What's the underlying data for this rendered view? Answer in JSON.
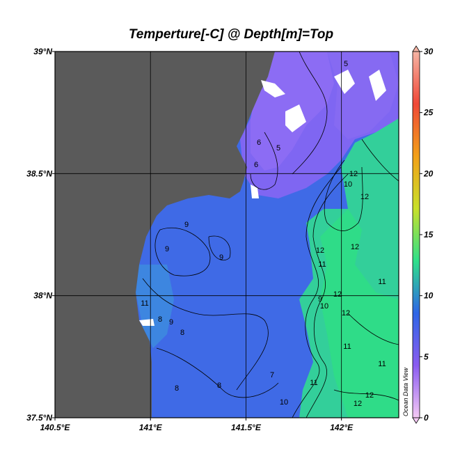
{
  "chart_data": {
    "type": "map",
    "title": "Temperture[-C] @ Depth[m]=Top",
    "xlim": [
      140.5,
      142.3
    ],
    "ylim": [
      37.5,
      39
    ],
    "xticks": [
      {
        "value": 140.5,
        "label": "140.5°E"
      },
      {
        "value": 141,
        "label": "141°E"
      },
      {
        "value": 141.5,
        "label": "141.5°E"
      },
      {
        "value": 142,
        "label": "142°E"
      }
    ],
    "yticks": [
      {
        "value": 37.5,
        "label": "37.5°N"
      },
      {
        "value": 38,
        "label": "38°N"
      },
      {
        "value": 38.5,
        "label": "38.5°N"
      },
      {
        "value": 39,
        "label": "39°N"
      }
    ],
    "grid": true,
    "colorbar": {
      "lim": [
        0,
        30
      ],
      "ticks": [
        0,
        5,
        10,
        15,
        20,
        25,
        30
      ],
      "colors": [
        "#f4c8f4",
        "#8a5cf0",
        "#2f66e6",
        "#2fe08a",
        "#c8e02a",
        "#f2a018",
        "#f04838",
        "#f6b4a4"
      ]
    },
    "contour_labels": [
      5,
      5,
      6,
      6,
      9,
      9,
      9,
      11,
      8,
      9,
      8,
      12,
      10,
      12,
      12,
      11,
      12,
      11,
      12,
      9,
      10,
      12,
      11,
      11,
      11,
      10,
      12,
      12,
      7,
      8,
      8
    ],
    "watermark": "Ocean Data View"
  }
}
